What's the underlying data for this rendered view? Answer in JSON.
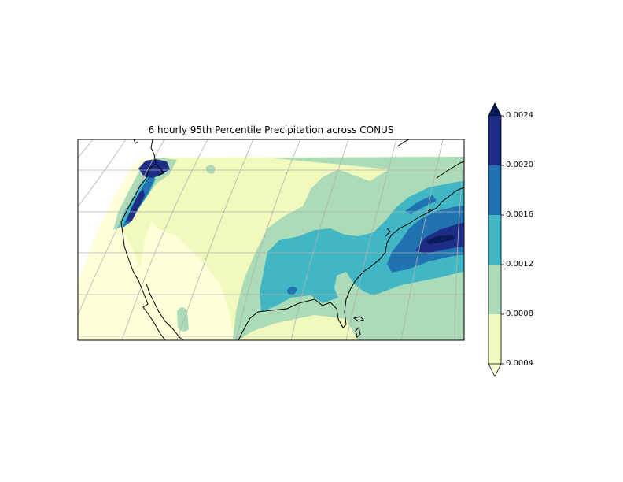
{
  "title": "6 hourly 95th Percentile Precipitation across CONUS",
  "colorbar": {
    "extend": "both",
    "ticks": [
      "0.0004",
      "0.0008",
      "0.0012",
      "0.0016",
      "0.0020",
      "0.0024"
    ],
    "levels": [
      0.0004,
      0.0008,
      0.0012,
      0.0016,
      0.002,
      0.0024
    ],
    "colors": {
      "under": "#ffffd9",
      "band_0004_0008": "#f1f9bc",
      "band_0008_0012": "#acdcb7",
      "band_0012_0016": "#41b6c4",
      "band_0016_0020": "#2072b0",
      "band_0020_0024": "#1d2d86",
      "over": "#081d58"
    }
  },
  "map": {
    "features": [
      "coastlines",
      "gridlines",
      "filled-contours"
    ],
    "gridline_color": "#b0b0b0",
    "coastline_color": "#000000"
  }
}
